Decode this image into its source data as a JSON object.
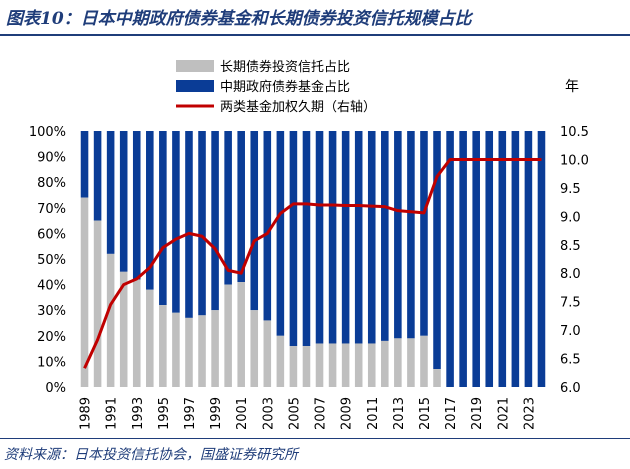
{
  "header": {
    "title": "图表10：日本中期政府债券基金和长期债券投资信托规模占比"
  },
  "footer": {
    "source": "资料来源：日本投资信托协会，国盛证券研究所"
  },
  "chart_data": {
    "type": "bar",
    "stacked": true,
    "categories": [
      "1989",
      "1990",
      "1991",
      "1992",
      "1993",
      "1994",
      "1995",
      "1996",
      "1997",
      "1998",
      "1999",
      "2000",
      "2001",
      "2002",
      "2003",
      "2004",
      "2005",
      "2006",
      "2007",
      "2008",
      "2009",
      "2010",
      "2011",
      "2012",
      "2013",
      "2014",
      "2015",
      "2016",
      "2017",
      "2018",
      "2019",
      "2020",
      "2021",
      "2022",
      "2023",
      "2024"
    ],
    "x_tick_labels": [
      "1989",
      "1991",
      "1993",
      "1995",
      "1997",
      "1999",
      "2001",
      "2003",
      "2005",
      "2007",
      "2009",
      "2011",
      "2013",
      "2015",
      "2017",
      "2019",
      "2021",
      "2023"
    ],
    "series": [
      {
        "name": "长期债券投资信托占比",
        "color": "#bfbfbf",
        "values": [
          74,
          65,
          52,
          45,
          42,
          38,
          32,
          29,
          27,
          28,
          30,
          40,
          41,
          30,
          26,
          20,
          16,
          16,
          17,
          17,
          17,
          17,
          17,
          18,
          19,
          19,
          20,
          7,
          0,
          0,
          0,
          0,
          0,
          0,
          0,
          0
        ]
      },
      {
        "name": "中期政府债券基金占比",
        "color": "#0a3c96",
        "values": [
          26,
          35,
          48,
          55,
          58,
          62,
          68,
          71,
          73,
          72,
          70,
          60,
          59,
          70,
          74,
          80,
          84,
          84,
          83,
          83,
          83,
          83,
          83,
          82,
          81,
          81,
          80,
          93,
          100,
          100,
          100,
          100,
          100,
          100,
          100,
          100
        ]
      },
      {
        "name": "两类基金加权久期（右轴）",
        "color": "#c00000",
        "axis": "right",
        "type": "line",
        "values": [
          6.33,
          6.83,
          7.45,
          7.8,
          7.9,
          8.1,
          8.45,
          8.6,
          8.7,
          8.65,
          8.43,
          8.05,
          8.0,
          8.57,
          8.7,
          9.05,
          9.22,
          9.22,
          9.2,
          9.2,
          9.19,
          9.19,
          9.18,
          9.17,
          9.1,
          9.08,
          9.06,
          9.7,
          10.0,
          10.0,
          10.0,
          10.0,
          10.0,
          10.0,
          10.0,
          10.0
        ]
      }
    ],
    "left_axis": {
      "min": 0,
      "max": 100,
      "step": 10,
      "format": "percent",
      "ticks": [
        "0%",
        "10%",
        "20%",
        "30%",
        "40%",
        "50%",
        "60%",
        "70%",
        "80%",
        "90%",
        "100%"
      ]
    },
    "right_axis": {
      "min": 6.0,
      "max": 10.5,
      "step": 0.5,
      "unit": "年",
      "ticks": [
        "6.0",
        "6.5",
        "7.0",
        "7.5",
        "8.0",
        "8.5",
        "9.0",
        "9.5",
        "10.0",
        "10.5"
      ]
    },
    "legend_position": "top-center",
    "grid": false
  }
}
